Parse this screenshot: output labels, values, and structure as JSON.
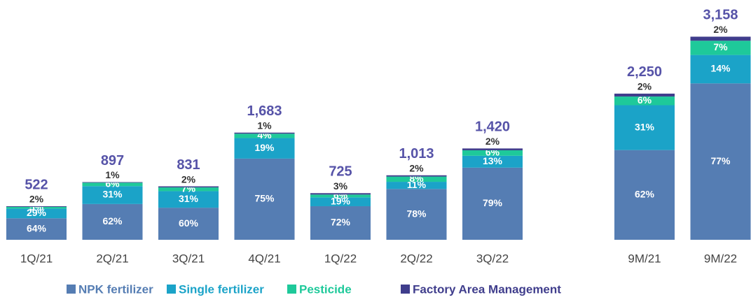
{
  "chart_data": {
    "type": "stacked_bar",
    "categories": [
      "1Q/21",
      "2Q/21",
      "3Q/21",
      "4Q/21",
      "1Q/22",
      "2Q/22",
      "3Q/22",
      null,
      "9M/21",
      "9M/22"
    ],
    "totals": {
      "values": [
        522,
        897,
        831,
        1683,
        725,
        1013,
        1420,
        null,
        2250,
        3158
      ],
      "value_labels": [
        "522",
        "897",
        "831",
        "1,683",
        "725",
        "1,013",
        "1,420",
        null,
        "2,250",
        "3,158"
      ]
    },
    "series": [
      {
        "name": "NPK fertilizer",
        "color": "#557db3",
        "values": [
          64,
          62,
          60,
          75,
          72,
          78,
          79,
          null,
          62,
          77
        ],
        "value_labels": [
          "64%",
          "62%",
          "60%",
          "75%",
          "72%",
          "78%",
          "79%",
          null,
          "62%",
          "77%"
        ]
      },
      {
        "name": "Single fertilizer",
        "color": "#1ba3c8",
        "values": [
          29,
          31,
          31,
          19,
          19,
          11,
          13,
          null,
          31,
          14
        ],
        "value_labels": [
          "29%",
          "31%",
          "31%",
          "19%",
          "19%",
          "11%",
          "13%",
          null,
          "31%",
          "14%"
        ]
      },
      {
        "name": "Pesticide",
        "color": "#1ec99a",
        "values": [
          5,
          6,
          7,
          4,
          6,
          8,
          6,
          null,
          6,
          7
        ],
        "value_labels": [
          "5%",
          "6%",
          "7%",
          "4%",
          "6%",
          "8%",
          "6%",
          null,
          "6%",
          "7%"
        ]
      },
      {
        "name": "Factory Area Management",
        "color": "#3f3d8c",
        "values": [
          2,
          1,
          2,
          1,
          3,
          2,
          2,
          null,
          2,
          2
        ],
        "value_labels": [
          "2%",
          "1%",
          "2%",
          "1%",
          "3%",
          "2%",
          "2%",
          null,
          "2%",
          "2%"
        ]
      }
    ]
  }
}
